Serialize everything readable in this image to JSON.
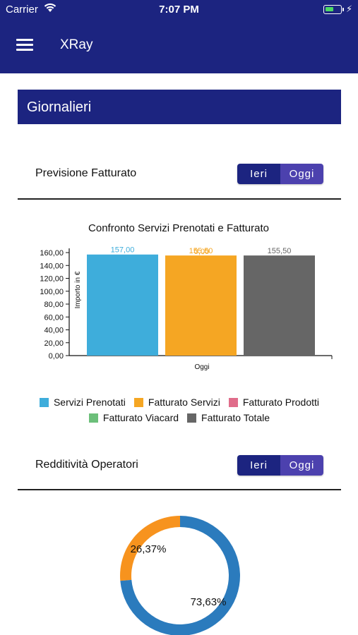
{
  "status_bar": {
    "carrier": "Carrier",
    "time": "7:07 PM"
  },
  "nav": {
    "title": "XRay"
  },
  "section": {
    "title": "Giornalieri"
  },
  "previsione": {
    "label": "Previsione Fatturato",
    "toggle": {
      "left": "Ieri",
      "right": "Oggi",
      "selected": "Ieri"
    }
  },
  "redditivita": {
    "label": "Redditività Operatori",
    "toggle": {
      "left": "Ieri",
      "right": "Oggi",
      "selected": "Ieri"
    }
  },
  "legend": [
    {
      "label": "Servizi Prenotati",
      "color": "#3eaddb"
    },
    {
      "label": "Fatturato Servizi",
      "color": "#f5a623"
    },
    {
      "label": "Fatturato Prodotti",
      "color": "#e06c8a"
    },
    {
      "label": "Fatturato Viacard",
      "color": "#6cbf7a"
    },
    {
      "label": "Fatturato Totale",
      "color": "#666666"
    }
  ],
  "chart_data": [
    {
      "type": "bar",
      "title": "Confronto Servizi Prenotati e Fatturato",
      "xlabel": "Oggi",
      "ylabel": "Importo in €",
      "ylim": [
        0,
        160
      ],
      "yticks": [
        "0,00",
        "20,00",
        "40,00",
        "60,00",
        "80,00",
        "100,00",
        "120,00",
        "140,00",
        "160,00"
      ],
      "categories": [
        "Oggi"
      ],
      "series": [
        {
          "name": "Servizi Prenotati",
          "values": [
            157.0
          ],
          "value_label": "157,00",
          "label_color": "#3eaddb",
          "color": "#3eaddb"
        },
        {
          "name": "Fatturato Servizi",
          "values": [
            155.5
          ],
          "value_label": "155,50",
          "label_color": "#f5a623",
          "color": "#f5a623"
        },
        {
          "name": "Fatturato Totale",
          "values": [
            155.5
          ],
          "value_label": "155,50",
          "label_color": "#666666",
          "color": "#666666"
        }
      ],
      "overlap_label": {
        "value_label": "0,00",
        "color": "#f5a623"
      }
    },
    {
      "type": "pie",
      "subtype": "donut",
      "slices": [
        {
          "value": 26.37,
          "label": "26,37%",
          "color": "#f7931e"
        },
        {
          "value": 73.63,
          "label": "73,63%",
          "color": "#2b7bbd"
        }
      ]
    }
  ]
}
